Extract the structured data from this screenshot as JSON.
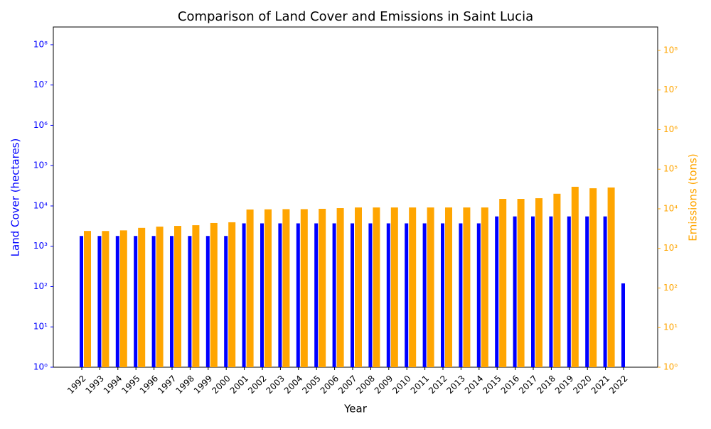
{
  "chart_data": {
    "type": "bar",
    "title": "Comparison of Land Cover and Emissions in Saint Lucia",
    "x_label": "Year",
    "y_label": "Land Cover (hectares)",
    "y2_label": "Emissions (tons)",
    "categories": [
      "1992",
      "1993",
      "1994",
      "1995",
      "1996",
      "1997",
      "1998",
      "1999",
      "2000",
      "2001",
      "2002",
      "2003",
      "2004",
      "2005",
      "2006",
      "2007",
      "2008",
      "2009",
      "2010",
      "2011",
      "2012",
      "2013",
      "2014",
      "2015",
      "2016",
      "2017",
      "2018",
      "2019",
      "2020",
      "2021",
      "2022"
    ],
    "yscale": "log",
    "y2scale": "log",
    "ylim": [
      1,
      275000000
    ],
    "y2lim": [
      1,
      390000000
    ],
    "yticks": [
      {
        "value": 1,
        "label": "10⁰"
      },
      {
        "value": 10,
        "label": "10¹"
      },
      {
        "value": 100,
        "label": "10²"
      },
      {
        "value": 1000,
        "label": "10³"
      },
      {
        "value": 10000,
        "label": "10⁴"
      },
      {
        "value": 100000,
        "label": "10⁵"
      },
      {
        "value": 1000000,
        "label": "10⁶"
      },
      {
        "value": 10000000,
        "label": "10⁷"
      },
      {
        "value": 100000000,
        "label": "10⁸"
      }
    ],
    "y2ticks": [
      {
        "value": 1,
        "label": "10⁰"
      },
      {
        "value": 10,
        "label": "10¹"
      },
      {
        "value": 100,
        "label": "10²"
      },
      {
        "value": 1000,
        "label": "10³"
      },
      {
        "value": 10000,
        "label": "10⁴"
      },
      {
        "value": 100000,
        "label": "10⁵"
      },
      {
        "value": 1000000,
        "label": "10⁶"
      },
      {
        "value": 10000000,
        "label": "10⁷"
      },
      {
        "value": 100000000,
        "label": "10⁸"
      }
    ],
    "series": [
      {
        "name": "Land Cover (hectares)",
        "color": "#0000ff",
        "axis": "y",
        "values": [
          1800,
          1800,
          1800,
          1800,
          1800,
          1800,
          1800,
          1800,
          1800,
          3700,
          3700,
          3700,
          3700,
          3700,
          3700,
          3700,
          3700,
          3700,
          3700,
          3700,
          3700,
          3700,
          3700,
          5500,
          5500,
          5500,
          5500,
          5500,
          5500,
          5500,
          120
        ]
      },
      {
        "name": "Emissions (tons)",
        "color": "#ffa500",
        "axis": "y2",
        "values": [
          2760,
          2750,
          2850,
          3300,
          3550,
          3700,
          3850,
          4380,
          4570,
          9600,
          9700,
          9800,
          9800,
          10000,
          10400,
          10800,
          10800,
          10800,
          10800,
          10800,
          10800,
          10800,
          10800,
          17800,
          17800,
          18500,
          24000,
          36000,
          33000,
          34500,
          null
        ]
      }
    ]
  }
}
